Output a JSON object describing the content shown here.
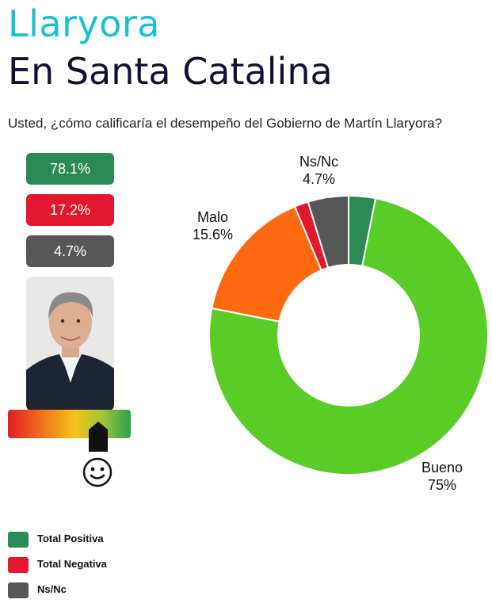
{
  "header": {
    "title": "Llaryora",
    "subtitle": "En Santa Catalina",
    "question": "Usted, ¿cómo calificaría el desempeño del Gobierno de Martín Llaryora?"
  },
  "summary": [
    {
      "label": "78.1%",
      "color": "#2a8a54"
    },
    {
      "label": "17.2%",
      "color": "#e3172f"
    },
    {
      "label": "4.7%",
      "color": "#575757"
    }
  ],
  "meter": {
    "level": 0.74,
    "mood": "smiley-face"
  },
  "colors": {
    "muy_bueno": "#2a8a54",
    "bueno": "#5acc28",
    "malo": "#ff6a10",
    "muy_malo": "#e3172f",
    "nsnc": "#575757"
  },
  "chart_data": {
    "type": "pie",
    "donut": true,
    "slices": [
      {
        "name": "",
        "value": 3.1,
        "color": "#2a8a54"
      },
      {
        "name": "Bueno",
        "label": "75%",
        "value": 75.0,
        "color": "#5acc28"
      },
      {
        "name": "Malo",
        "label": "15.6%",
        "value": 15.6,
        "color": "#ff6a10"
      },
      {
        "name": "",
        "value": 1.6,
        "color": "#e3172f"
      },
      {
        "name": "Ns/Nc",
        "label": "4.7%",
        "value": 4.7,
        "color": "#575757"
      }
    ],
    "legend": [
      {
        "label": "Total Positiva",
        "color": "#2a8a54"
      },
      {
        "label": "Total Negativa",
        "color": "#e3172f"
      },
      {
        "label": "Ns/Nc",
        "color": "#575757"
      }
    ],
    "legend_position": "bottom-left"
  }
}
